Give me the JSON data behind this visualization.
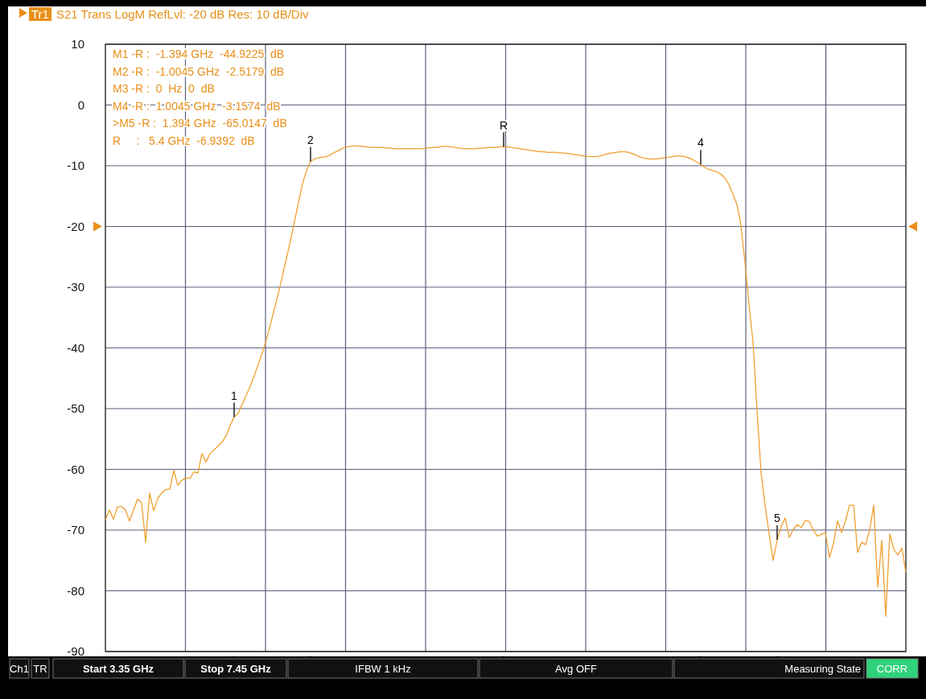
{
  "chart_data": {
    "type": "line",
    "title": "S21 Trans LogM RefLvl: -20  dB Res: 10  dB/Div",
    "categories": [
      null,
      null,
      null,
      null,
      null,
      null,
      null,
      null,
      null,
      null,
      null,
      null,
      null,
      null,
      null,
      null,
      null,
      null,
      null,
      null,
      null,
      null,
      null,
      null,
      null,
      null,
      null,
      null,
      null,
      null,
      null,
      null,
      null,
      null,
      null,
      null,
      null,
      null,
      null,
      null,
      null,
      null,
      null,
      null,
      null,
      null,
      null,
      null,
      null,
      null,
      null,
      null,
      null,
      null,
      null,
      null,
      null,
      null,
      null,
      null,
      null,
      null,
      null,
      null,
      null,
      null,
      null,
      null,
      null,
      null,
      null,
      null,
      null,
      null,
      null,
      null,
      null,
      null,
      null,
      null,
      null,
      null,
      null,
      null,
      null,
      null,
      null,
      null,
      null,
      null,
      null,
      null,
      null,
      null,
      null,
      null,
      null,
      null,
      null,
      null,
      null,
      null,
      null,
      null,
      null,
      null,
      null,
      null,
      null,
      null,
      null,
      null,
      null,
      null,
      null,
      null,
      null,
      null,
      null,
      null,
      null,
      null,
      null,
      null,
      null,
      null,
      null,
      null,
      null,
      null,
      null,
      null,
      null,
      null,
      null,
      null,
      null,
      null,
      null,
      null,
      null,
      null,
      null,
      null,
      null,
      null,
      null,
      null,
      null,
      null,
      null,
      null,
      null,
      null,
      null,
      null,
      null,
      null,
      null,
      null,
      null,
      null,
      null,
      null,
      null,
      null,
      null,
      null,
      null,
      null,
      null,
      null,
      null,
      null,
      null,
      null,
      null,
      null,
      null,
      null,
      null,
      null,
      null,
      null,
      null,
      null,
      null,
      null,
      null,
      null,
      null,
      null,
      null,
      null,
      null,
      null,
      null,
      null,
      null,
      null
    ],
    "series": [
      {
        "color": "#f0a030",
        "values": [
          -68.3,
          -66.7,
          -68.2,
          -66.2,
          -66.1,
          -66.7,
          -68.5,
          -66.7,
          -64.9,
          -65.5,
          -72,
          -63.9,
          -66.8,
          -64.8,
          -63.9,
          -63.3,
          -63.3,
          -60.2,
          -62.6,
          -61.8,
          -61.4,
          -61.5,
          -60.4,
          -60.6,
          -57.4,
          -58.8,
          -57.4,
          -56.8,
          -56.2,
          -55.5,
          -54.5,
          -52.8,
          -51.4,
          -50.8,
          -49.3,
          -47.8,
          -46.3,
          -44.6,
          -42.7,
          -40.8,
          -38.7,
          -36.2,
          -33.6,
          -31,
          -28.2,
          -25.3,
          -22.4,
          -19.3,
          -16,
          -13,
          -10.8,
          -9.3,
          -8.9,
          -8.7,
          -8.6,
          -8.5,
          -8.2,
          -7.8,
          -7.5,
          -7.1,
          -6.9,
          -6.8,
          -6.7,
          -6.8,
          -6.8,
          -6.9,
          -7,
          -7,
          -7,
          -7,
          -7.1,
          -7.1,
          -7.2,
          -7.2,
          -7.2,
          -7.2,
          -7.2,
          -7.2,
          -7.2,
          -7.2,
          -7.1,
          -7,
          -7,
          -6.9,
          -6.8,
          -6.8,
          -6.9,
          -7,
          -7.1,
          -7.2,
          -7.2,
          -7.2,
          -7.2,
          -7.1,
          -7.1,
          -7,
          -7,
          -7,
          -6.9,
          -6.9,
          -6.9,
          -7,
          -7.1,
          -7.2,
          -7.3,
          -7.4,
          -7.5,
          -7.6,
          -7.7,
          -7.7,
          -7.8,
          -7.8,
          -7.8,
          -7.9,
          -7.9,
          -8,
          -8.1,
          -8.2,
          -8.3,
          -8.4,
          -8.5,
          -8.5,
          -8.5,
          -8.4,
          -8.2,
          -8,
          -7.9,
          -7.8,
          -7.7,
          -7.7,
          -7.8,
          -8,
          -8.3,
          -8.6,
          -8.8,
          -8.9,
          -8.9,
          -8.9,
          -8.8,
          -8.7,
          -8.6,
          -8.5,
          -8.4,
          -8.4,
          -8.5,
          -8.7,
          -9,
          -9.4,
          -9.8,
          -10.3,
          -10.6,
          -10.8,
          -11,
          -11.4,
          -12,
          -13.1,
          -14.7,
          -16.4,
          -19.8,
          -26,
          -32.8,
          -39.1,
          -50.4,
          -60.5,
          -66,
          -70.6,
          -75,
          -71.6,
          -69.4,
          -68,
          -71.2,
          -69.9,
          -69.1,
          -69.6,
          -68.4,
          -68.6,
          -70,
          -71,
          -70.7,
          -70.4,
          -74.5,
          -72.2,
          -68.5,
          -70.4,
          -68.5,
          -65.9,
          -65.9,
          -73.7,
          -72,
          -72.4,
          -70,
          -65.9,
          -79.4,
          -71.7,
          -84.2,
          -70.6,
          -73.2,
          -74.1,
          -73,
          -77
        ]
      }
    ],
    "ylim": [
      -90,
      10
    ],
    "yticks": [
      10,
      0,
      -10,
      -20,
      -30,
      -40,
      -50,
      -60,
      -70,
      -80,
      -90
    ],
    "tick_labels": "y",
    "grid": true,
    "marker": "none",
    "line_style": "solid",
    "annotations": [
      "Tr1",
      "M1 -R :  -1.394 GHz  -44.9225  dB",
      "M2 -R :  -1.0045 GHz  -2.5179  dB",
      "M3 -R :  0  Hz  0  dB",
      "M4 -R :  1.0045 GHz  -3.1574  dB",
      ">M5 -R :  1.394 GHz  -65.0147  dB",
      "R     :   5.4 GHz  -6.9392  dB",
      "Ch1",
      "TR",
      "Start 3.35 GHz",
      "Stop 7.45 GHz",
      "IFBW 1 kHz",
      "Avg OFF",
      "Measuring State",
      "CORR",
      "1",
      "2",
      "R",
      "4",
      "5"
    ]
  }
}
